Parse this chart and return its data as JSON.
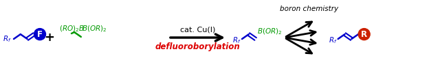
{
  "bg_color": "#ffffff",
  "boron_chemistry_text": "boron chemistry",
  "defluoro_text": "defluoroborylation",
  "defluoro_color": "#dd0000",
  "cat_text": "cat. Cu(I)",
  "cat_color": "#000000",
  "Rf_color": "#0000cc",
  "green_color": "#009900",
  "F_circle_color": "#0000cc",
  "R_circle_color": "#cc2200",
  "plus_color": "#000000",
  "arrow_color": "#000000",
  "figw": 6.4,
  "figh": 1.2,
  "dpi": 100
}
